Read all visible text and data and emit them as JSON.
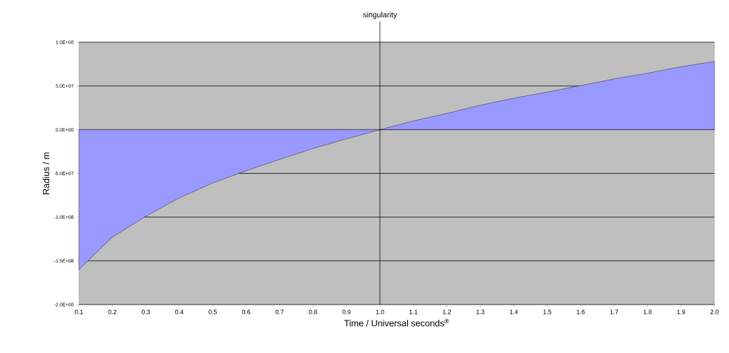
{
  "chart_data": {
    "type": "area",
    "xlabel": "Time / Universal seconds$^{®}$",
    "ylabel": "Radius / m",
    "x": [
      0.1,
      0.2,
      0.3,
      0.4,
      0.5,
      0.6,
      0.7,
      0.8,
      0.9,
      1.0,
      1.1,
      1.2,
      1.3,
      1.4,
      1.5,
      1.6,
      1.7,
      1.8,
      1.9,
      2.0
    ],
    "series": [
      {
        "color": "#9999ff",
        "values": [
          -160000000,
          -123000000,
          -99000000,
          -78000000,
          -61000000,
          -47000000,
          -34000000,
          -21500000,
          -10500000,
          0,
          10000000,
          18600000,
          28000000,
          36000000,
          43000000,
          50500000,
          58000000,
          64600000,
          72000000,
          78000000
        ]
      }
    ],
    "xlim": [
      0.1,
      2.0
    ],
    "ylim": [
      -200000000,
      100000000
    ],
    "xticks": [
      0.1,
      0.2,
      0.3,
      0.4,
      0.5,
      0.6,
      0.7,
      0.8,
      0.9,
      {
        "value": 1.0,
        "label": "1.0"
      },
      1.1,
      1.2,
      1.3,
      1.4,
      1.5,
      1.6,
      1.7,
      1.8,
      1.9,
      {
        "value": 2.0,
        "label": "2.0"
      }
    ],
    "yticks": [
      {
        "value": -200000000,
        "label": "-2.0E+08"
      },
      {
        "value": -150000000,
        "label": "-1.5E+08"
      },
      {
        "value": -100000000,
        "label": "-1.0E+08"
      },
      {
        "value": -50000000,
        "label": "-5.0E+07"
      },
      {
        "value": 0,
        "label": "0.0E+00"
      },
      {
        "value": 50000000,
        "label": "5.0E+07"
      },
      {
        "value": 100000000,
        "label": "1.0E+08"
      }
    ],
    "ref_lines": [
      {
        "axis": "x",
        "value": 1.0,
        "label": "singularity",
        "color": "#000000"
      }
    ],
    "grid": "y"
  }
}
